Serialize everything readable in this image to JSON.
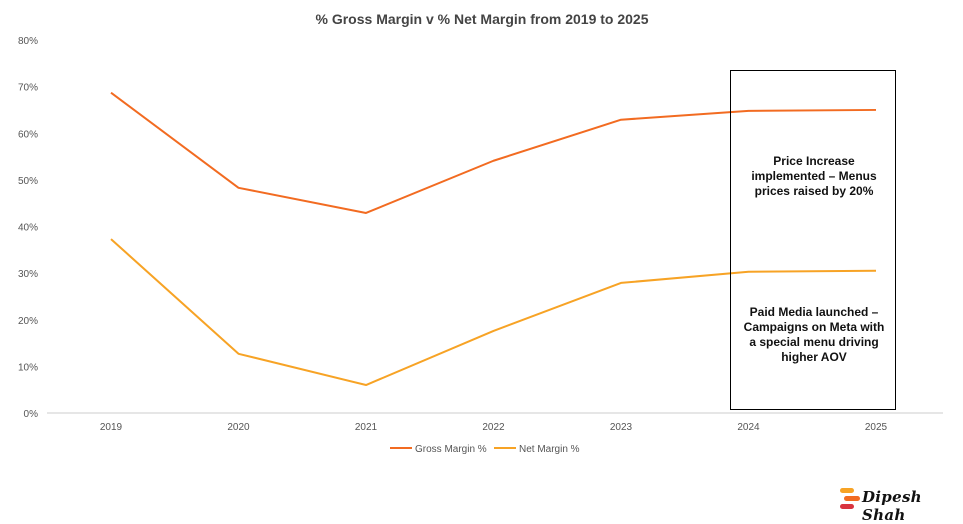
{
  "chart_data": {
    "type": "line",
    "title": "% Gross Margin v % Net Margin from 2019 to 2025",
    "xlabel": "",
    "ylabel": "",
    "categories": [
      "2019",
      "2020",
      "2021",
      "2022",
      "2023",
      "2024",
      "2025"
    ],
    "ylim": [
      0,
      80
    ],
    "yticks": [
      0,
      10,
      20,
      30,
      40,
      50,
      60,
      70,
      80
    ],
    "ytick_labels": [
      "0%",
      "10%",
      "20%",
      "30%",
      "40%",
      "50%",
      "60%",
      "70%",
      "80%"
    ],
    "grid": false,
    "legend_position": "bottom",
    "series": [
      {
        "name": "Gross Margin %",
        "color": "#F26B21",
        "values": [
          68.7,
          48.3,
          42.9,
          54.1,
          62.9,
          64.8,
          65.0
        ]
      },
      {
        "name": "Net Margin %",
        "color": "#F7A325",
        "values": [
          37.3,
          12.7,
          6.0,
          17.6,
          27.9,
          30.3,
          30.5
        ]
      }
    ],
    "annotations": [
      {
        "text": "Price Increase implemented – Menus prices raised by 20%"
      },
      {
        "text": "Paid Media launched – Campaigns on Meta with a special menu driving higher AOV"
      }
    ]
  },
  "branding": {
    "logo_text": "Dipesh Shah",
    "logo_colors": [
      "#F7A325",
      "#F26B21",
      "#D9343F"
    ]
  }
}
